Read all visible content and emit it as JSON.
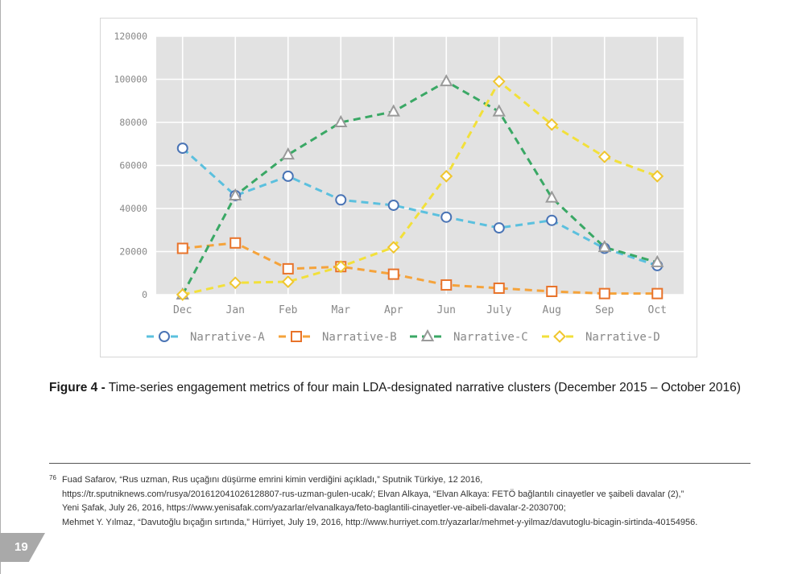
{
  "caption": {
    "label": "Figure 4 -",
    "text": " Time-series engagement metrics of four main LDA-designated narrative clusters (December 2015 – October 2016)"
  },
  "footnote": {
    "number": "76",
    "lines": [
      "Fuad Safarov, “Rus uzman, Rus uçağını düşürme emrini kimin verdiğini açıkladı,” Sputnik Türkiye, 12 2016,",
      "https://tr.sputniknews.com/rusya/201612041026128807-rus-uzman-gulen-ucak/; Elvan Alkaya, “Elvan Alkaya: FETÖ bağlantılı cinayetler ve şaibeli davalar (2),”",
      "Yeni Şafak, July 26, 2016, https://www.yenisafak.com/yazarlar/elvanalkaya/feto-baglantili-cinayetler-ve-aibeli-davalar-2-2030700;",
      "Mehmet Y. Yılmaz, “Davutoğlu bıçağın sırtında,” Hürriyet, July 19, 2016, http://www.hurriyet.com.tr/yazarlar/mehmet-y-yilmaz/davutoglu-bicagin-sirtinda-40154956."
    ]
  },
  "page_number": "19",
  "chart_data": {
    "type": "line",
    "categories": [
      "Dec",
      "Jan",
      "Feb",
      "Mar",
      "Apr",
      "Jun",
      "July",
      "Aug",
      "Sep",
      "Oct"
    ],
    "ylim": [
      0,
      120000
    ],
    "yticks": [
      0,
      20000,
      40000,
      60000,
      80000,
      100000,
      120000
    ],
    "grid": true,
    "legend_position": "bottom",
    "series": [
      {
        "name": "Narrative-A",
        "color": "#5bc0de",
        "marker": "circle",
        "marker_color": "#4a74b5",
        "values": [
          68000,
          46000,
          55000,
          44000,
          41500,
          36000,
          31000,
          34500,
          21500,
          13500
        ]
      },
      {
        "name": "Narrative-B",
        "color": "#f5a33b",
        "marker": "square",
        "marker_color": "#e8732a",
        "values": [
          21500,
          24000,
          12000,
          13000,
          9500,
          4500,
          3000,
          1500,
          500,
          500
        ]
      },
      {
        "name": "Narrative-C",
        "color": "#3aa865",
        "marker": "triangle",
        "marker_color": "#9a9a9a",
        "values": [
          0,
          46000,
          65000,
          80000,
          85000,
          99000,
          85000,
          45000,
          22000,
          15000
        ]
      },
      {
        "name": "Narrative-D",
        "color": "#f2e03a",
        "marker": "diamond",
        "marker_color": "#f0c62e",
        "values": [
          0,
          5500,
          6000,
          13000,
          22000,
          55000,
          99000,
          79000,
          64000,
          55000
        ]
      }
    ]
  }
}
